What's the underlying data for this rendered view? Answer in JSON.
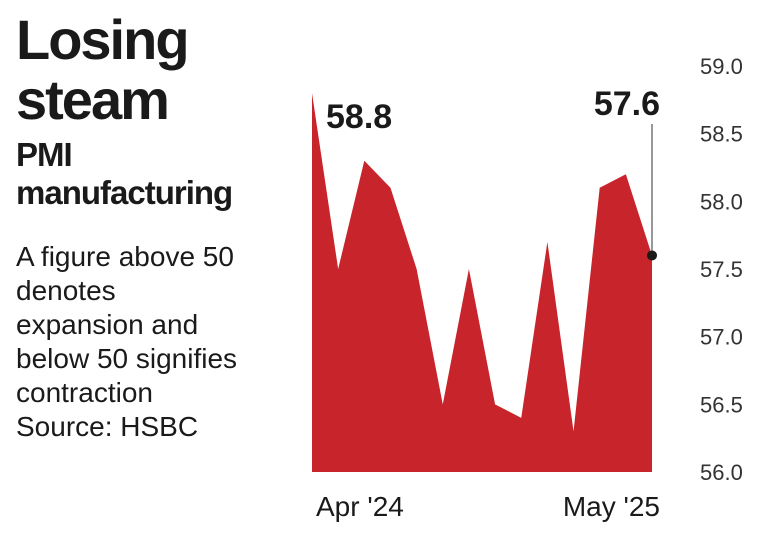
{
  "chart_data": {
    "type": "area",
    "title": "Losing steam",
    "subtitle": "PMI manufacturing",
    "note": "A figure above 50 denotes expansion and below 50 signifies contraction",
    "source": "Source: HSBC",
    "categories": [
      "Apr '24",
      null,
      null,
      null,
      null,
      null,
      null,
      null,
      null,
      null,
      null,
      null,
      null,
      "May '25"
    ],
    "series": [
      {
        "name": "PMI",
        "color": "#c8242b",
        "values": [
          58.8,
          57.5,
          58.3,
          58.1,
          57.5,
          56.5,
          57.5,
          56.5,
          56.4,
          57.7,
          56.3,
          58.1,
          58.2,
          57.6
        ]
      }
    ],
    "ylim": [
      56,
      59
    ],
    "yticks": [
      {
        "value": 56,
        "label": "56.0"
      },
      {
        "value": 56.5,
        "label": "56.5"
      },
      {
        "value": 57,
        "label": "57.0"
      },
      {
        "value": 57.5,
        "label": "57.5"
      },
      {
        "value": 58,
        "label": "58.0"
      },
      {
        "value": 58.5,
        "label": "58.5"
      },
      {
        "value": 59,
        "label": "59.0"
      }
    ]
  }
}
